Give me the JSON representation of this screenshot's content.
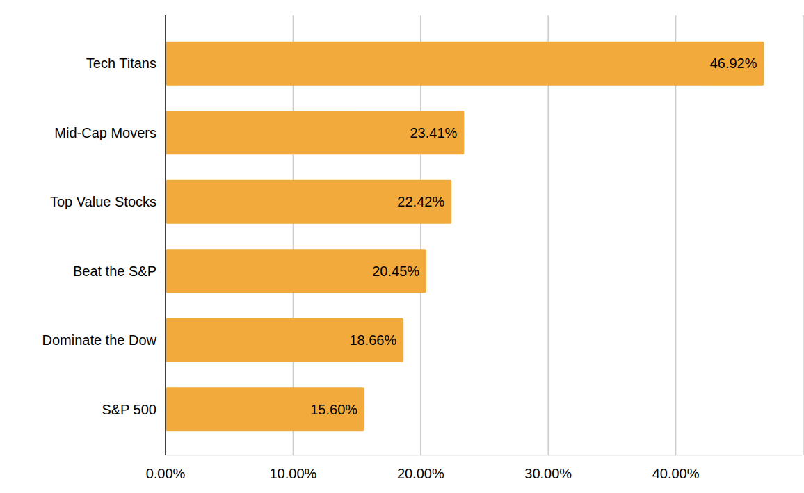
{
  "chart_data": {
    "type": "bar",
    "orientation": "horizontal",
    "categories": [
      "Tech Titans",
      "Mid-Cap Movers",
      "Top Value Stocks",
      "Beat the S&P",
      "Dominate the Dow",
      "S&P 500"
    ],
    "values": [
      46.92,
      23.41,
      22.42,
      20.45,
      18.66,
      15.6
    ],
    "value_labels": [
      "46.92%",
      "23.41%",
      "22.42%",
      "20.45%",
      "18.66%",
      "15.60%"
    ],
    "color": "#f2aa3c",
    "xlim": [
      0,
      50
    ],
    "xticks": [
      {
        "value": 0,
        "label": "0.00%"
      },
      {
        "value": 10,
        "label": "10.00%"
      },
      {
        "value": 20,
        "label": "20.00%"
      },
      {
        "value": 30,
        "label": "30.00%"
      },
      {
        "value": 40,
        "label": "40.00%"
      }
    ],
    "grid": true,
    "data_labels": true
  }
}
